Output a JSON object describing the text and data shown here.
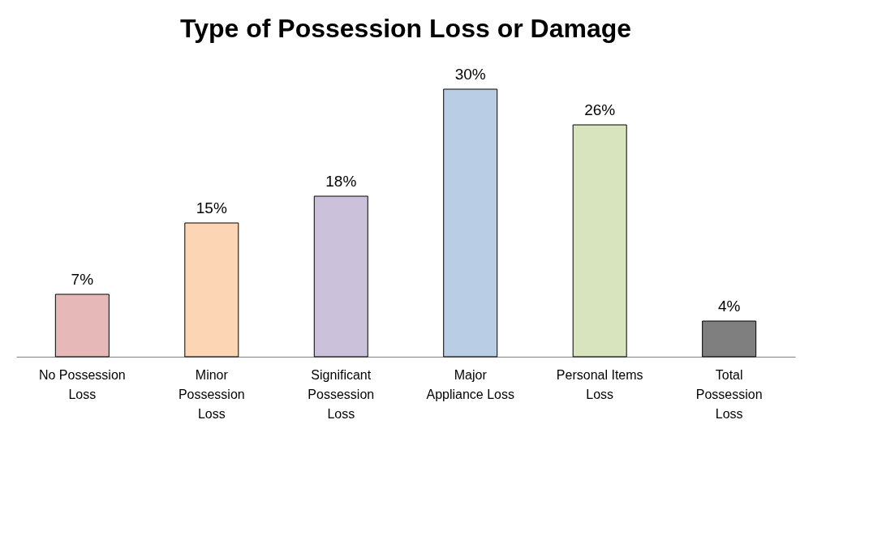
{
  "chart_data": {
    "type": "bar",
    "title": "Type of Possession Loss or Damage",
    "categories": [
      "No Possession Loss",
      "Minor Possession Loss",
      "Significant Possession Loss",
      "Major Appliance Loss",
      "Personal Items Loss",
      "Total Possession Loss"
    ],
    "values": [
      7,
      15,
      18,
      30,
      26,
      4
    ],
    "colors": [
      "#e6b9b8",
      "#fcd5b5",
      "#ccc1da",
      "#b9cde5",
      "#d7e4bd",
      "#7f7f7f"
    ],
    "value_labels": [
      "7%",
      "15%",
      "18%",
      "30%",
      "26%",
      "4%"
    ],
    "grid": false
  }
}
